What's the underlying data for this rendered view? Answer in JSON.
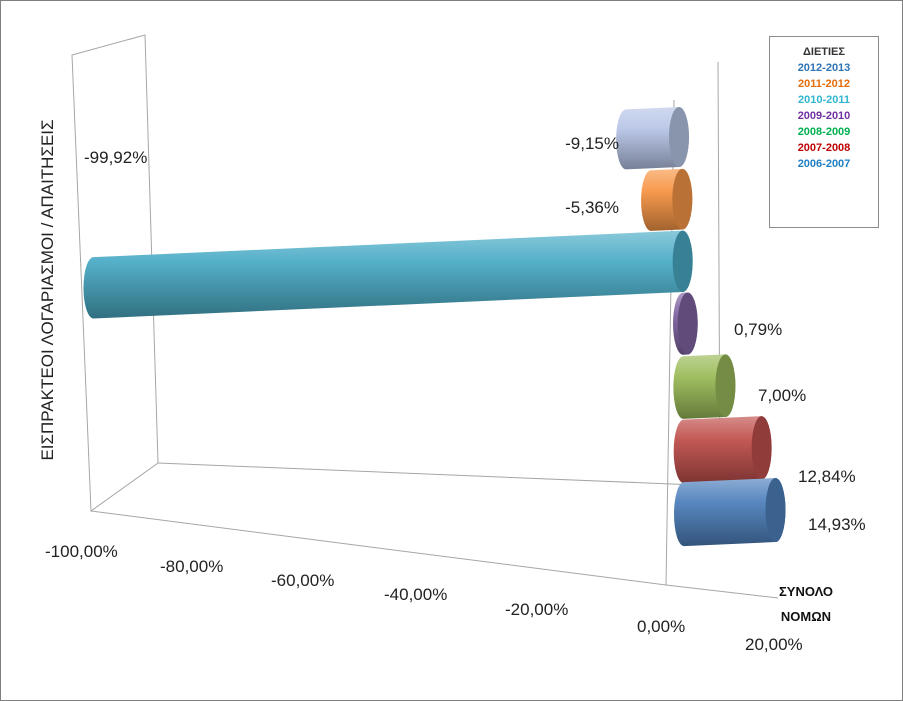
{
  "chart_data": {
    "type": "bar",
    "orientation": "horizontal",
    "style": "3d-cylinder",
    "category": "ΣΥΝΟΛΟ ΝΟΜΩΝ",
    "ylabel": "ΕΙΣΠΡΑΚΤΕΟΙ ΛΟΓΑΡΙΑΣΜΟΙ / ΑΠΑΙΤΗΣΕΙΣ",
    "legend_title": "ΔΙΕΤΙΕΣ",
    "legend_position": "top-right",
    "xlim": [
      -100,
      20
    ],
    "x_ticks": [
      "-100,00%",
      "-80,00%",
      "-60,00%",
      "-40,00%",
      "-20,00%",
      "0,00%",
      "20,00%"
    ],
    "series": [
      {
        "name": "2012-2013",
        "value": -9.15,
        "label": "-9,15%",
        "color": "#b7c5e6"
      },
      {
        "name": "2011-2012",
        "value": -5.36,
        "label": "-5,36%",
        "color": "#f79646"
      },
      {
        "name": "2010-2011",
        "value": -99.92,
        "label": "-99,92%",
        "color": "#4bacc6"
      },
      {
        "name": "2009-2010",
        "value": 0.79,
        "label": "0,79%",
        "color": "#8064a2"
      },
      {
        "name": "2008-2009",
        "value": 7.0,
        "label": "7,00%",
        "color": "#9bbb59"
      },
      {
        "name": "2007-2008",
        "value": 12.84,
        "label": "12,84%",
        "color": "#c0504d"
      },
      {
        "name": "2006-2007",
        "value": 14.93,
        "label": "14,93%",
        "color": "#4f81bd"
      }
    ],
    "legend_colors": {
      "2012-2013": "#2e74b5",
      "2011-2012": "#e46c0a",
      "2010-2011": "#31b6cf",
      "2009-2010": "#7030a0",
      "2008-2009": "#00b050",
      "2007-2008": "#c00000",
      "2006-2007": "#1f7fc1"
    }
  }
}
